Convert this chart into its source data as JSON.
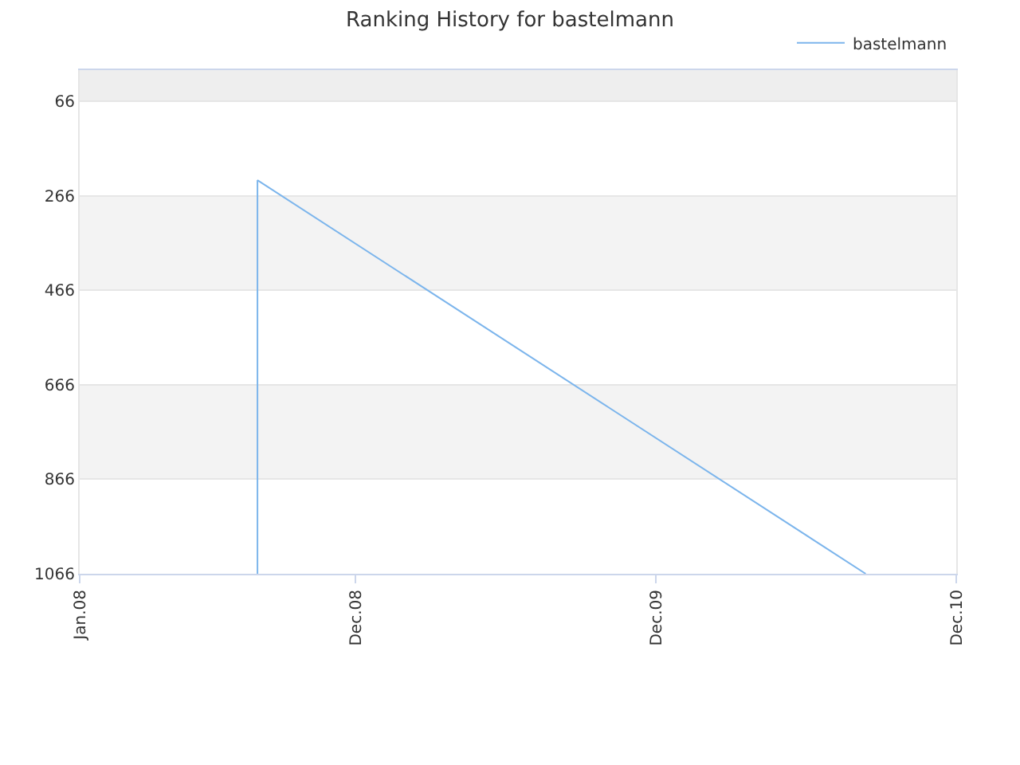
{
  "chart_data": {
    "type": "line",
    "title": "Ranking History for bastelmann",
    "series": [
      {
        "name": "bastelmann",
        "color": "#7cb5ec",
        "x": [
          "2008-08-04",
          "2008-08-04",
          "2010-08-13"
        ],
        "values": [
          1066,
          233,
          1066
        ]
      }
    ],
    "xlim": [
      "2008-01-01",
      "2010-12-01"
    ],
    "xticks": [
      {
        "value": "2008-01-01",
        "label": "Jan.08"
      },
      {
        "value": "2008-12-01",
        "label": "Dec.08"
      },
      {
        "value": "2009-12-01",
        "label": "Dec.09"
      },
      {
        "value": "2010-12-01",
        "label": "Dec.10"
      }
    ],
    "ylim": [
      1066,
      0
    ],
    "yticks": [
      66,
      266,
      466,
      666,
      866,
      1066
    ],
    "bands": [
      {
        "axis": "y",
        "from": 0,
        "to": 66,
        "color": "#eeeeee"
      },
      {
        "axis": "y",
        "from": 266,
        "to": 466,
        "color": "#f3f3f3"
      },
      {
        "axis": "y",
        "from": 666,
        "to": 866,
        "color": "#f3f3f3"
      }
    ],
    "grid": "y",
    "legend": "top right",
    "marker": "none",
    "line_style": "solid"
  }
}
